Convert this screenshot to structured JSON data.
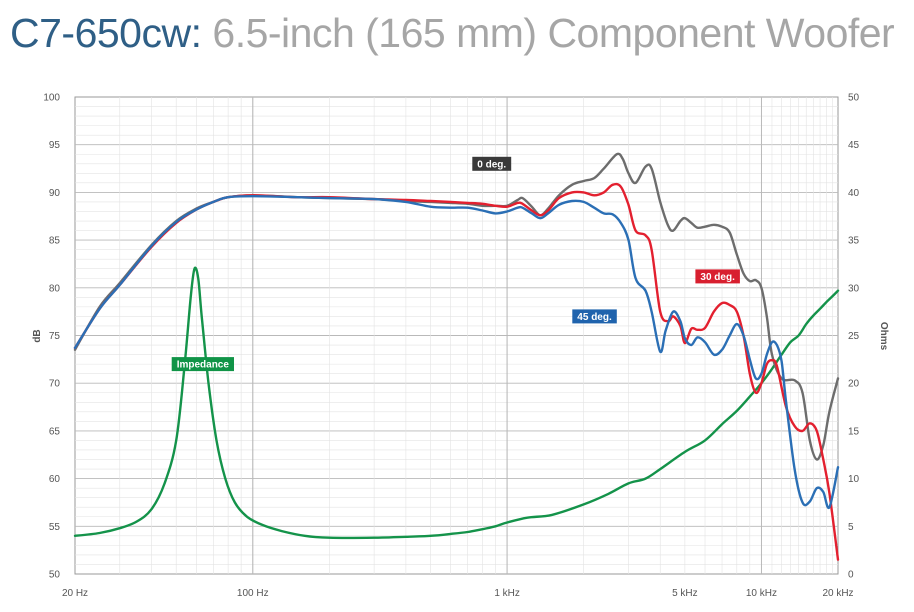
{
  "header": {
    "model": "C7-650cw:",
    "description": "6.5-inch (165 mm) Component Woofer"
  },
  "chart_data": {
    "type": "line",
    "xscale": "log",
    "xlim": [
      20,
      20000
    ],
    "ylim": [
      50,
      100
    ],
    "y2lim": [
      0,
      50
    ],
    "ylabel": "dB",
    "y2label": "Ohms",
    "grid": true,
    "x_ticks": [
      {
        "value": 20,
        "label": "20 Hz"
      },
      {
        "value": 100,
        "label": "100 Hz"
      },
      {
        "value": 1000,
        "label": "1 kHz"
      },
      {
        "value": 5000,
        "label": "5 kHz"
      },
      {
        "value": 10000,
        "label": "10 kHz"
      },
      {
        "value": 20000,
        "label": "20 kHz"
      }
    ],
    "y_ticks": [
      "50",
      "55",
      "60",
      "65",
      "70",
      "75",
      "80",
      "85",
      "90",
      "95",
      "100"
    ],
    "y2_ticks": [
      "0",
      "5",
      "10",
      "15",
      "20",
      "25",
      "30",
      "35",
      "40",
      "45",
      "50"
    ],
    "series": [
      {
        "name": "0 deg.",
        "axis": "left",
        "color": "#6d6d6d",
        "label_color": "#3a3a3a",
        "label_at": [
          870,
          93
        ],
        "label_align": "center",
        "points": [
          [
            20,
            73.5
          ],
          [
            25,
            78
          ],
          [
            30,
            80.5
          ],
          [
            40,
            84.5
          ],
          [
            50,
            87
          ],
          [
            60,
            88.3
          ],
          [
            70,
            89
          ],
          [
            80,
            89.5
          ],
          [
            100,
            89.7
          ],
          [
            150,
            89.5
          ],
          [
            200,
            89.4
          ],
          [
            300,
            89.3
          ],
          [
            400,
            89.1
          ],
          [
            500,
            89
          ],
          [
            600,
            88.9
          ],
          [
            700,
            88.8
          ],
          [
            800,
            88.6
          ],
          [
            900,
            88.6
          ],
          [
            1000,
            88.6
          ],
          [
            1100,
            89.2
          ],
          [
            1150,
            89.4
          ],
          [
            1250,
            88.5
          ],
          [
            1350,
            87.6
          ],
          [
            1450,
            88.3
          ],
          [
            1600,
            89.7
          ],
          [
            1800,
            90.8
          ],
          [
            2000,
            91.2
          ],
          [
            2200,
            91.5
          ],
          [
            2400,
            92.5
          ],
          [
            2700,
            94
          ],
          [
            2850,
            93.5
          ],
          [
            3000,
            92
          ],
          [
            3200,
            91
          ],
          [
            3500,
            92.7
          ],
          [
            3700,
            92.5
          ],
          [
            4000,
            89
          ],
          [
            4300,
            86.5
          ],
          [
            4500,
            86
          ],
          [
            4800,
            87
          ],
          [
            5000,
            87.3
          ],
          [
            5300,
            86.8
          ],
          [
            5600,
            86.3
          ],
          [
            6000,
            86.4
          ],
          [
            6500,
            86.6
          ],
          [
            7000,
            86.4
          ],
          [
            7500,
            85.8
          ],
          [
            8000,
            83.5
          ],
          [
            8500,
            81.5
          ],
          [
            9000,
            80.7
          ],
          [
            9500,
            80.8
          ],
          [
            10000,
            80
          ],
          [
            10500,
            77
          ],
          [
            11000,
            73
          ],
          [
            12000,
            70.5
          ],
          [
            13500,
            70.3
          ],
          [
            14500,
            69
          ],
          [
            15500,
            64
          ],
          [
            16500,
            62
          ],
          [
            17500,
            63.5
          ],
          [
            18500,
            67
          ],
          [
            20000,
            70.5
          ]
        ]
      },
      {
        "name": "30 deg.",
        "axis": "left",
        "color": "#e3202f",
        "label_color": "#d81f2f",
        "label_at": [
          5500,
          81.2
        ],
        "label_align": "left",
        "points": [
          [
            20,
            73.7
          ],
          [
            25,
            77.8
          ],
          [
            30,
            80.3
          ],
          [
            40,
            84.3
          ],
          [
            50,
            86.8
          ],
          [
            60,
            88.2
          ],
          [
            70,
            89
          ],
          [
            80,
            89.5
          ],
          [
            100,
            89.7
          ],
          [
            150,
            89.5
          ],
          [
            200,
            89.5
          ],
          [
            300,
            89.3
          ],
          [
            400,
            89.2
          ],
          [
            500,
            89.1
          ],
          [
            600,
            89
          ],
          [
            700,
            88.9
          ],
          [
            800,
            88.8
          ],
          [
            900,
            88.6
          ],
          [
            1000,
            88.5
          ],
          [
            1100,
            88.9
          ],
          [
            1150,
            88.8
          ],
          [
            1250,
            88.1
          ],
          [
            1350,
            87.6
          ],
          [
            1450,
            88.1
          ],
          [
            1600,
            89.4
          ],
          [
            1800,
            90
          ],
          [
            2000,
            90
          ],
          [
            2200,
            89.7
          ],
          [
            2400,
            90
          ],
          [
            2600,
            90.8
          ],
          [
            2800,
            90.6
          ],
          [
            3000,
            88.7
          ],
          [
            3200,
            86
          ],
          [
            3500,
            85.5
          ],
          [
            3700,
            84
          ],
          [
            4000,
            77.5
          ],
          [
            4300,
            76.5
          ],
          [
            4500,
            77
          ],
          [
            4800,
            76
          ],
          [
            5000,
            74.2
          ],
          [
            5300,
            75.7
          ],
          [
            5600,
            75.6
          ],
          [
            6000,
            75.8
          ],
          [
            6500,
            77.5
          ],
          [
            7000,
            78.4
          ],
          [
            7500,
            78.2
          ],
          [
            8000,
            77.5
          ],
          [
            8500,
            75
          ],
          [
            9000,
            71
          ],
          [
            9500,
            69
          ],
          [
            10000,
            70
          ],
          [
            10500,
            72
          ],
          [
            11000,
            72.4
          ],
          [
            11500,
            71.8
          ],
          [
            12500,
            67.5
          ],
          [
            13500,
            65.5
          ],
          [
            14500,
            65
          ],
          [
            15500,
            65.8
          ],
          [
            16500,
            65
          ],
          [
            17500,
            62
          ],
          [
            18500,
            58.5
          ],
          [
            20000,
            51.5
          ]
        ]
      },
      {
        "name": "45 deg.",
        "axis": "left",
        "color": "#2b6fb5",
        "label_color": "#1f63ad",
        "label_at": [
          2700,
          77
        ],
        "label_align": "right",
        "points": [
          [
            20,
            73.7
          ],
          [
            25,
            77.8
          ],
          [
            30,
            80.3
          ],
          [
            40,
            84.4
          ],
          [
            50,
            86.9
          ],
          [
            60,
            88.2
          ],
          [
            70,
            89
          ],
          [
            80,
            89.5
          ],
          [
            100,
            89.6
          ],
          [
            150,
            89.5
          ],
          [
            200,
            89.4
          ],
          [
            300,
            89.3
          ],
          [
            400,
            89
          ],
          [
            500,
            88.5
          ],
          [
            600,
            88.4
          ],
          [
            700,
            88.4
          ],
          [
            800,
            88.1
          ],
          [
            900,
            87.8
          ],
          [
            1000,
            88
          ],
          [
            1100,
            88.4
          ],
          [
            1150,
            88.4
          ],
          [
            1250,
            87.8
          ],
          [
            1350,
            87.3
          ],
          [
            1450,
            87.8
          ],
          [
            1600,
            88.7
          ],
          [
            1800,
            89.1
          ],
          [
            2000,
            89
          ],
          [
            2200,
            88.4
          ],
          [
            2400,
            87.8
          ],
          [
            2600,
            87.7
          ],
          [
            2800,
            86.8
          ],
          [
            3000,
            85
          ],
          [
            3200,
            81
          ],
          [
            3500,
            79.7
          ],
          [
            3700,
            77.5
          ],
          [
            4000,
            73.3
          ],
          [
            4200,
            75.5
          ],
          [
            4500,
            77.5
          ],
          [
            4800,
            76.5
          ],
          [
            5000,
            74.7
          ],
          [
            5300,
            74
          ],
          [
            5600,
            74.8
          ],
          [
            6000,
            74.3
          ],
          [
            6500,
            73
          ],
          [
            7000,
            73.5
          ],
          [
            7500,
            75
          ],
          [
            8000,
            76.2
          ],
          [
            8500,
            75
          ],
          [
            9000,
            72.5
          ],
          [
            9500,
            70.5
          ],
          [
            10000,
            71
          ],
          [
            10500,
            73
          ],
          [
            11000,
            74.3
          ],
          [
            11500,
            74
          ],
          [
            12000,
            72.3
          ],
          [
            12500,
            68
          ],
          [
            13500,
            61
          ],
          [
            14500,
            57.5
          ],
          [
            15500,
            57.6
          ],
          [
            16500,
            59
          ],
          [
            17500,
            58.6
          ],
          [
            18500,
            57
          ],
          [
            20000,
            61.2
          ]
        ]
      },
      {
        "name": "Impedance",
        "axis": "right",
        "color": "#14934a",
        "label_color": "#109447",
        "label_at": [
          48,
          22
        ],
        "label_align": "left",
        "points": [
          [
            20,
            4
          ],
          [
            25,
            4.3
          ],
          [
            30,
            4.8
          ],
          [
            35,
            5.5
          ],
          [
            40,
            6.8
          ],
          [
            45,
            9.5
          ],
          [
            50,
            14
          ],
          [
            54,
            22
          ],
          [
            57,
            29
          ],
          [
            59,
            32
          ],
          [
            61,
            31
          ],
          [
            63,
            27
          ],
          [
            67,
            20
          ],
          [
            72,
            14
          ],
          [
            78,
            10
          ],
          [
            85,
            7.5
          ],
          [
            95,
            6
          ],
          [
            110,
            5.1
          ],
          [
            130,
            4.5
          ],
          [
            160,
            4
          ],
          [
            200,
            3.8
          ],
          [
            300,
            3.8
          ],
          [
            400,
            3.9
          ],
          [
            500,
            4
          ],
          [
            600,
            4.2
          ],
          [
            700,
            4.4
          ],
          [
            800,
            4.7
          ],
          [
            900,
            5
          ],
          [
            1000,
            5.4
          ],
          [
            1200,
            5.9
          ],
          [
            1500,
            6.2
          ],
          [
            2000,
            7.3
          ],
          [
            2500,
            8.4
          ],
          [
            3000,
            9.5
          ],
          [
            3500,
            10
          ],
          [
            4000,
            11
          ],
          [
            5000,
            12.8
          ],
          [
            6000,
            14
          ],
          [
            7000,
            15.7
          ],
          [
            8000,
            17.1
          ],
          [
            9000,
            18.6
          ],
          [
            10000,
            20
          ],
          [
            11000,
            21.5
          ],
          [
            12000,
            23
          ],
          [
            13000,
            24.3
          ],
          [
            14000,
            25
          ],
          [
            15000,
            26.2
          ],
          [
            16000,
            27.1
          ],
          [
            17000,
            27.8
          ],
          [
            18000,
            28.5
          ],
          [
            19000,
            29.1
          ],
          [
            20000,
            29.7
          ]
        ]
      }
    ]
  }
}
